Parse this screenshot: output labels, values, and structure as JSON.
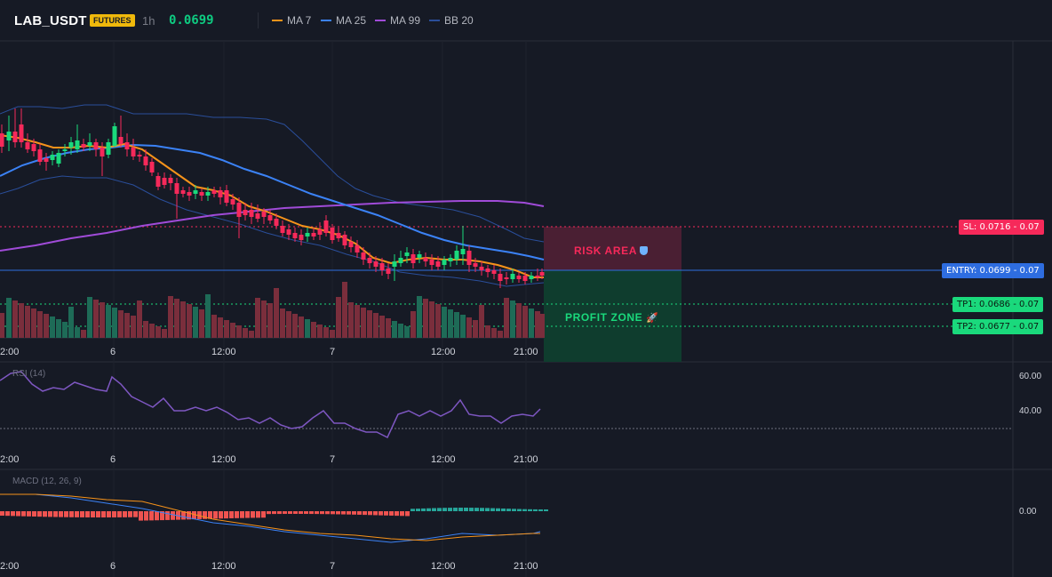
{
  "header": {
    "symbol": "LAB_USDT",
    "badge": "FUTURES",
    "interval": "1h",
    "price": "0.0699",
    "legend": [
      {
        "label": "MA 7",
        "color": "#f7931a"
      },
      {
        "label": "MA 25",
        "color": "#3b82f6"
      },
      {
        "label": "MA 99",
        "color": "#a04bd8"
      },
      {
        "label": "BB 20",
        "color": "#2a4e9a"
      }
    ]
  },
  "levels": {
    "sl": {
      "text": "SL: 0.0716",
      "suffix": "- 0.07",
      "value": 0.0716
    },
    "entry": {
      "text": "ENTRY: 0.0699",
      "suffix": "- 0.07",
      "value": 0.0699
    },
    "tp1": {
      "text": "TP1: 0.0686",
      "suffix": "- 0.07",
      "value": 0.0686
    },
    "tp2": {
      "text": "TP2: 0.0677",
      "suffix": "- 0.07",
      "value": 0.0677
    }
  },
  "zones": {
    "risk": {
      "label": "RISK AREA",
      "icon": "shield-icon"
    },
    "profit": {
      "label": "PROFIT ZONE",
      "icon": "rocket-icon"
    }
  },
  "time_axis": [
    "2:00",
    "6",
    "12:00",
    "7",
    "12:00",
    "21:00"
  ],
  "rsi": {
    "title": "RSI (14)",
    "levels": [
      "60.00",
      "40.00"
    ]
  },
  "macd": {
    "title": "MACD (12, 26, 9)",
    "levels": [
      "0.00"
    ]
  },
  "colors": {
    "up": "#1ad97c",
    "down": "#f6295a",
    "bg": "#161a25",
    "grid": "#1f2330"
  }
}
